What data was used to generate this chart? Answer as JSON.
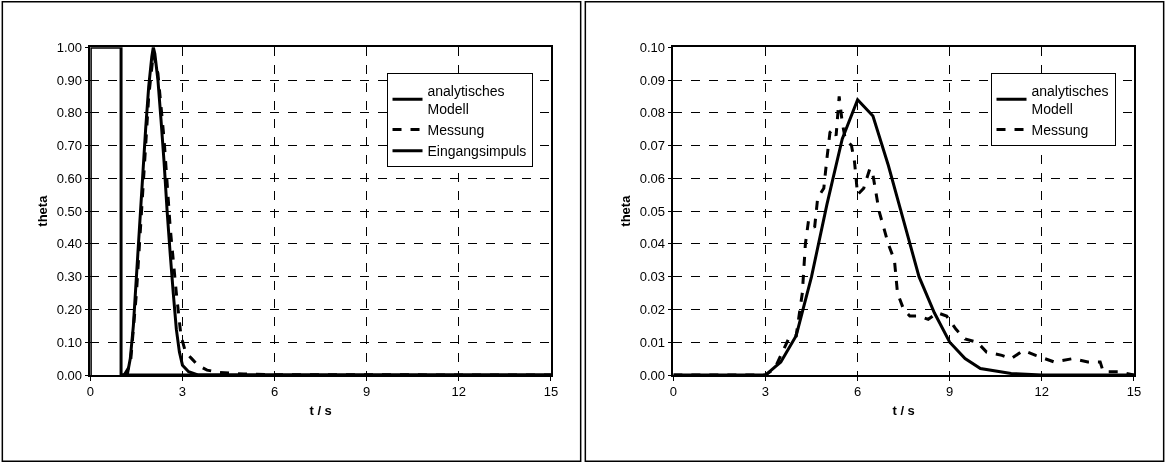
{
  "chart_data": [
    {
      "type": "line",
      "xlabel": "t / s",
      "ylabel": "theta",
      "xlim": [
        0,
        15
      ],
      "xticks": [
        0,
        3,
        6,
        9,
        12,
        15
      ],
      "ylim": [
        0,
        1
      ],
      "yticks": [
        {
          "value": 0,
          "label": "0.00"
        },
        {
          "value": 0.1,
          "label": "0.10"
        },
        {
          "value": 0.2,
          "label": "0.20"
        },
        {
          "value": 0.3,
          "label": "0.30"
        },
        {
          "value": 0.4,
          "label": "0.40"
        },
        {
          "value": 0.5,
          "label": "0.50"
        },
        {
          "value": 0.6,
          "label": "0.60"
        },
        {
          "value": 0.7,
          "label": "0.70"
        },
        {
          "value": 0.8,
          "label": "0.80"
        },
        {
          "value": 0.9,
          "label": "0.90"
        },
        {
          "value": 1,
          "label": "1.00"
        }
      ],
      "grid": true,
      "legend": "top right",
      "marker": "none",
      "series": [
        {
          "name": "analytisches\nModell",
          "color": "#000000",
          "line_style": "solid",
          "x": [
            1.0,
            1.2,
            1.3,
            1.4,
            1.5,
            1.6,
            1.7,
            1.8,
            1.9,
            2.0,
            2.05,
            2.1,
            2.2,
            2.3,
            2.4,
            2.5,
            2.6,
            2.7,
            2.8,
            2.9,
            3.0,
            3.2,
            3.5,
            15
          ],
          "values": [
            0,
            0,
            0.05,
            0.15,
            0.3,
            0.45,
            0.6,
            0.75,
            0.88,
            0.97,
            1.0,
            0.98,
            0.9,
            0.78,
            0.65,
            0.5,
            0.37,
            0.25,
            0.14,
            0.07,
            0.03,
            0.01,
            0,
            0
          ]
        },
        {
          "name": "Messung",
          "color": "#000000",
          "line_style": "dashed",
          "x": [
            1.1,
            1.3,
            1.5,
            1.7,
            1.9,
            2.05,
            2.2,
            2.4,
            2.6,
            2.8,
            2.95,
            3.1,
            3.3,
            3.5,
            3.8,
            4.2,
            5,
            6,
            15
          ],
          "values": [
            0,
            0.03,
            0.25,
            0.55,
            0.85,
            0.98,
            0.92,
            0.72,
            0.45,
            0.25,
            0.12,
            0.07,
            0.05,
            0.03,
            0.015,
            0.008,
            0.003,
            0.001,
            0
          ]
        },
        {
          "name": "Eingangsimpuls",
          "color": "#000000",
          "line_style": "solid",
          "x": [
            0,
            0,
            1,
            1,
            15
          ],
          "values": [
            0,
            1,
            1,
            0,
            0
          ]
        }
      ]
    },
    {
      "type": "line",
      "xlabel": "t / s",
      "ylabel": "theta",
      "xlim": [
        0,
        15
      ],
      "xticks": [
        0,
        3,
        6,
        9,
        12,
        15
      ],
      "ylim": [
        0,
        0.1
      ],
      "yticks": [
        {
          "value": 0,
          "label": "0.00"
        },
        {
          "value": 0.01,
          "label": "0.01"
        },
        {
          "value": 0.02,
          "label": "0.02"
        },
        {
          "value": 0.03,
          "label": "0.03"
        },
        {
          "value": 0.04,
          "label": "0.04"
        },
        {
          "value": 0.05,
          "label": "0.05"
        },
        {
          "value": 0.06,
          "label": "0.06"
        },
        {
          "value": 0.07,
          "label": "0.07"
        },
        {
          "value": 0.08,
          "label": "0.08"
        },
        {
          "value": 0.09,
          "label": "0.09"
        },
        {
          "value": 0.1,
          "label": "0.10"
        }
      ],
      "grid": true,
      "legend": "top right",
      "marker": "none",
      "series": [
        {
          "name": "analytisches\nModell",
          "color": "#000000",
          "line_style": "solid",
          "x": [
            0,
            3,
            3.5,
            4,
            4.5,
            5,
            5.5,
            6,
            6.5,
            7,
            7.5,
            8,
            8.5,
            9,
            9.5,
            10,
            11,
            12,
            15
          ],
          "values": [
            0,
            0,
            0.004,
            0.012,
            0.03,
            0.052,
            0.072,
            0.084,
            0.079,
            0.064,
            0.047,
            0.03,
            0.019,
            0.01,
            0.005,
            0.002,
            0.0005,
            0,
            0
          ]
        },
        {
          "name": "Messung",
          "color": "#000000",
          "line_style": "dashed",
          "x": [
            0,
            3,
            3.3,
            3.6,
            3.8,
            4.0,
            4.2,
            4.3,
            4.4,
            4.6,
            4.7,
            4.9,
            5.0,
            5.1,
            5.2,
            5.3,
            5.4,
            5.5,
            5.6,
            5.8,
            5.9,
            6.0,
            6.2,
            6.4,
            6.5,
            6.7,
            7.0,
            7.2,
            7.3,
            7.5,
            7.7,
            8.0,
            8.3,
            8.6,
            8.9,
            9.2,
            9.5,
            9.9,
            10.2,
            10.7,
            11.0,
            11.4,
            11.8,
            12.4,
            13.0,
            13.5,
            13.9,
            14.0,
            14.5,
            15
          ],
          "values": [
            0,
            0,
            0.002,
            0.008,
            0.012,
            0.012,
            0.025,
            0.04,
            0.047,
            0.045,
            0.054,
            0.057,
            0.066,
            0.074,
            0.075,
            0.073,
            0.085,
            0.077,
            0.072,
            0.07,
            0.065,
            0.055,
            0.057,
            0.063,
            0.061,
            0.05,
            0.04,
            0.035,
            0.025,
            0.02,
            0.018,
            0.018,
            0.017,
            0.019,
            0.018,
            0.014,
            0.011,
            0.01,
            0.007,
            0.006,
            0.005,
            0.0075,
            0.006,
            0.004,
            0.005,
            0.004,
            0.004,
            0.001,
            0.001,
            0
          ]
        }
      ]
    }
  ]
}
